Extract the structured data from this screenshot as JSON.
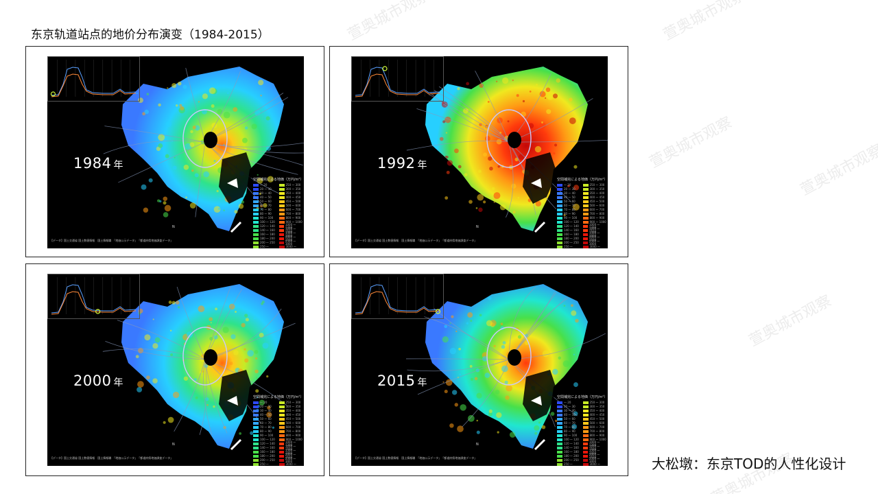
{
  "page": {
    "title": "东京轨道站点的地价分布演变（1984-2015）",
    "footer": "大松墩：东京TOD的人性化设计",
    "watermark": "萱奥城市观察"
  },
  "panels": [
    {
      "year": "1984",
      "nen": "年",
      "heat": 0.35
    },
    {
      "year": "1992",
      "nen": "年",
      "heat": 0.9
    },
    {
      "year": "2000",
      "nen": "年",
      "heat": 0.5
    },
    {
      "year": "2015",
      "nen": "年",
      "heat": 0.6
    }
  ],
  "legend": {
    "title": "空間補完による地価（万円/m²）",
    "colors": [
      "#2c4bff",
      "#3a79ff",
      "#34a8ff",
      "#27cfff",
      "#20e6d0",
      "#2fe38a",
      "#48e04a",
      "#8ee22f",
      "#c8ea25",
      "#f0e81f",
      "#ffc81a",
      "#ff9a14",
      "#ff6a10",
      "#ff3a0c",
      "#e9160a",
      "#c40808"
    ],
    "labels_left": [
      "～ 20",
      "20 ～ 30",
      "30 ～ 40",
      "40 ～ 50",
      "50 ～ 60",
      "60 ～ 70",
      "70 ～ 80",
      "80 ～ 90",
      "90 ～ 100",
      "100 ～ 120",
      "120 ～ 140",
      "140 ～ 160",
      "160 ～ 180",
      "180 ～ 200",
      "200 ～ 250",
      "250 ～"
    ],
    "labels_right": [
      "250 ～ 300",
      "300 ～ 350",
      "350 ～ 400",
      "400 ～ 450",
      "450 ～ 500",
      "500 ～ 600",
      "600 ～ 700",
      "700 ～ 800",
      "800 ～ 900",
      "900 ～ 1000",
      "1000 ～ 1200",
      "1200 ～ 1500",
      "1500 ～ 2000",
      "2000 ～ 2500",
      "2500 ～ 3000",
      "3000 ～"
    ]
  },
  "source": "【データ】国土交通省 国土数値情報　国土情報職　「地価公示データ」　「都道府県地価調査データ」",
  "chart_markers": [
    0.02,
    0.35,
    0.55,
    0.98
  ]
}
